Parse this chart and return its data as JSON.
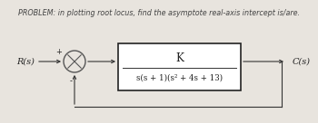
{
  "title": "PROBLEM: in plotting root locus, find the asymptote real-axis intercept is/are.",
  "title_fontsize": 5.8,
  "title_color": "#444444",
  "background_color": "#e8e4de",
  "rs_label": "R(s)",
  "cs_label": "C(s)",
  "plus_label": "+",
  "minus_label": "-",
  "numerator": "K",
  "denominator": "s(s + 1)(s² + 4s + 13)",
  "box_facecolor": "#ffffff",
  "box_edgecolor": "#222222",
  "line_color": "#333333",
  "text_color": "#222222",
  "circle_color": "#555555",
  "fig_w": 3.5,
  "fig_h": 1.36,
  "dpi": 100
}
